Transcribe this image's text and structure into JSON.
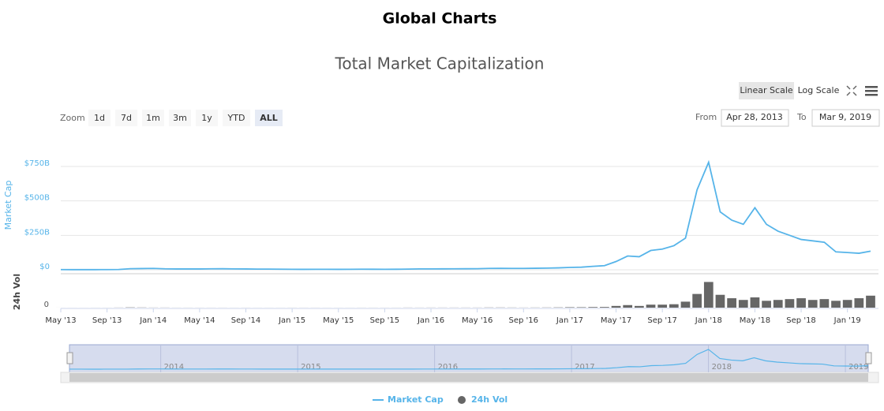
{
  "page_title": "Global Charts",
  "toolbar": {
    "scales": [
      "Linear Scale",
      "Log Scale"
    ],
    "zoom_label": "Zoom",
    "zoom_buttons": [
      "1d",
      "7d",
      "1m",
      "3m",
      "1y",
      "YTD",
      "ALL"
    ],
    "from_label": "From",
    "from_value": "Apr 28, 2013",
    "to_label": "To",
    "to_value": "Mar 9, 2019"
  },
  "chart_data": {
    "type": "line",
    "title": "Total Market Capitalization",
    "ylabel": "Market Cap",
    "y2label": "24h Vol",
    "x": [
      "2013-05",
      "2013-06",
      "2013-07",
      "2013-08",
      "2013-09",
      "2013-10",
      "2013-11",
      "2013-12",
      "2014-01",
      "2014-02",
      "2014-03",
      "2014-04",
      "2014-05",
      "2014-06",
      "2014-07",
      "2014-08",
      "2014-09",
      "2014-10",
      "2014-11",
      "2014-12",
      "2015-01",
      "2015-02",
      "2015-03",
      "2015-04",
      "2015-05",
      "2015-06",
      "2015-07",
      "2015-08",
      "2015-09",
      "2015-10",
      "2015-11",
      "2015-12",
      "2016-01",
      "2016-02",
      "2016-03",
      "2016-04",
      "2016-05",
      "2016-06",
      "2016-07",
      "2016-08",
      "2016-09",
      "2016-10",
      "2016-11",
      "2016-12",
      "2017-01",
      "2017-02",
      "2017-03",
      "2017-04",
      "2017-05",
      "2017-06",
      "2017-07",
      "2017-08",
      "2017-09",
      "2017-10",
      "2017-11",
      "2017-12",
      "2018-01",
      "2018-02",
      "2018-03",
      "2018-04",
      "2018-05",
      "2018-06",
      "2018-07",
      "2018-08",
      "2018-09",
      "2018-10",
      "2018-11",
      "2018-12",
      "2019-01",
      "2019-02",
      "2019-03"
    ],
    "series": [
      {
        "name": "Market Cap",
        "color": "#56b4e9",
        "values": [
          1.3,
          1.2,
          1.0,
          1.2,
          1.5,
          2.3,
          8,
          9,
          10,
          7,
          6,
          6,
          6,
          7,
          7.5,
          6.5,
          6,
          5,
          5,
          4.5,
          3.5,
          3.3,
          3.6,
          3.4,
          3.3,
          3.6,
          4.3,
          3.8,
          3.6,
          4,
          5,
          6.5,
          6.5,
          6.8,
          7,
          7.5,
          8,
          10,
          10.5,
          10,
          10,
          11,
          12,
          14,
          17,
          19,
          25,
          30,
          60,
          100,
          95,
          140,
          150,
          175,
          230,
          580,
          780,
          420,
          360,
          330,
          450,
          330,
          280,
          250,
          220,
          210,
          200,
          130,
          125,
          120,
          135
        ]
      },
      {
        "name": "24h Vol",
        "color": "#666666",
        "axis": "y2",
        "type": "column",
        "values": [
          0.02,
          0.02,
          0.02,
          0.03,
          0.03,
          0.1,
          0.3,
          0.2,
          0.1,
          0.1,
          0.05,
          0.05,
          0.04,
          0.04,
          0.04,
          0.03,
          0.04,
          0.03,
          0.03,
          0.03,
          0.05,
          0.04,
          0.04,
          0.03,
          0.03,
          0.03,
          0.05,
          0.05,
          0.04,
          0.05,
          0.1,
          0.08,
          0.1,
          0.1,
          0.1,
          0.1,
          0.1,
          0.2,
          0.2,
          0.15,
          0.1,
          0.15,
          0.2,
          0.3,
          0.5,
          0.5,
          0.7,
          0.8,
          2,
          3,
          2,
          3.5,
          3.5,
          4,
          7,
          16,
          30,
          15,
          11,
          9,
          12,
          8,
          9,
          10,
          11,
          9,
          10,
          8,
          9,
          11,
          14
        ]
      }
    ],
    "xlim": [
      "2013-05",
      "2019-03"
    ],
    "xticks": [
      {
        "value": "2013-05",
        "label": "May '13"
      },
      {
        "value": "2013-09",
        "label": "Sep '13"
      },
      {
        "value": "2014-01",
        "label": "Jan '14"
      },
      {
        "value": "2014-05",
        "label": "May '14"
      },
      {
        "value": "2014-09",
        "label": "Sep '14"
      },
      {
        "value": "2015-01",
        "label": "Jan '15"
      },
      {
        "value": "2015-05",
        "label": "May '15"
      },
      {
        "value": "2015-09",
        "label": "Sep '15"
      },
      {
        "value": "2016-01",
        "label": "Jan '16"
      },
      {
        "value": "2016-05",
        "label": "May '16"
      },
      {
        "value": "2016-09",
        "label": "Sep '16"
      },
      {
        "value": "2017-01",
        "label": "Jan '17"
      },
      {
        "value": "2017-05",
        "label": "May '17"
      },
      {
        "value": "2017-09",
        "label": "Sep '17"
      },
      {
        "value": "2018-01",
        "label": "Jan '18"
      },
      {
        "value": "2018-05",
        "label": "May '18"
      },
      {
        "value": "2018-09",
        "label": "Sep '18"
      },
      {
        "value": "2019-01",
        "label": "Jan '19"
      }
    ],
    "ylim": [
      0,
      870
    ],
    "yticks": [
      {
        "value": 0,
        "label": "$0"
      },
      {
        "value": 250,
        "label": "$250B"
      },
      {
        "value": 500,
        "label": "$500B"
      },
      {
        "value": 750,
        "label": "$750B"
      }
    ],
    "y2lim": [
      0,
      35
    ],
    "y2ticks": [
      0
    ],
    "grid": true,
    "navigator_labels": [
      {
        "value": "2014-01",
        "label": "2014"
      },
      {
        "value": "2015-01",
        "label": "2015"
      },
      {
        "value": "2016-01",
        "label": "2016"
      },
      {
        "value": "2017-01",
        "label": "2017"
      },
      {
        "value": "2018-01",
        "label": "2018"
      },
      {
        "value": "2019-01",
        "label": "2019"
      }
    ]
  }
}
